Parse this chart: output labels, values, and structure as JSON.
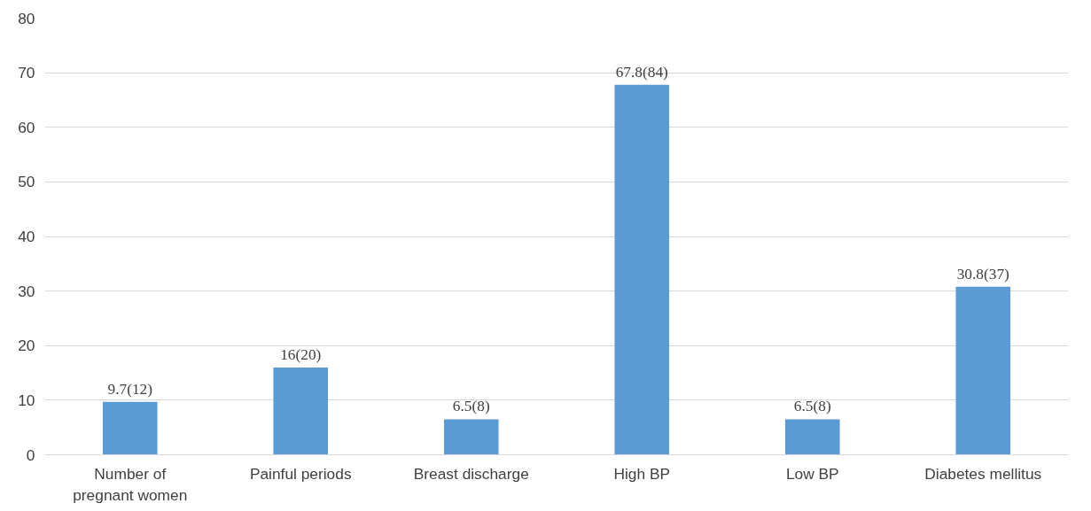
{
  "chart_data": {
    "type": "bar",
    "categories": [
      "Number of pregnant women",
      "Painful periods",
      "Breast discharge",
      "High BP",
      "Low BP",
      "Diabetes mellitus"
    ],
    "values": [
      9.7,
      16,
      6.5,
      67.8,
      6.5,
      30.8
    ],
    "value_labels": [
      "9.7(12)",
      "16(20)",
      "6.5(8)",
      "67.8(84)",
      "6.5(8)",
      "30.8(37)"
    ],
    "color": "#5b9bd5",
    "ylim": [
      0,
      80
    ],
    "yticks": [
      0,
      10,
      20,
      30,
      40,
      50,
      60,
      70,
      80
    ],
    "grid": "y"
  }
}
